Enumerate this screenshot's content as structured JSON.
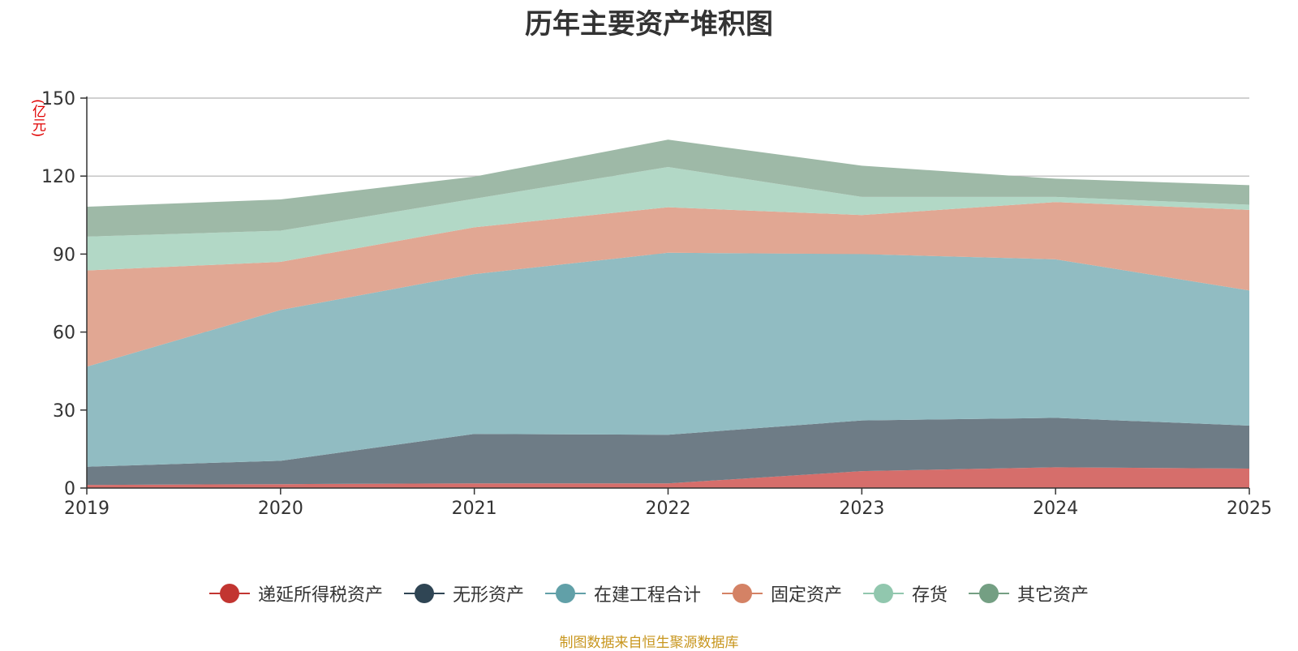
{
  "chart_data": {
    "type": "area",
    "stacked": true,
    "title": "历年主要资产堆积图",
    "unit": "(亿元)",
    "xlabel": "",
    "ylabel": "(亿元)",
    "ylim": [
      0,
      150
    ],
    "yticks": [
      0,
      30,
      60,
      90,
      120,
      150
    ],
    "categories": [
      "2019",
      "2020",
      "2021",
      "2022",
      "2023",
      "2024",
      "2025"
    ],
    "grid": true,
    "legend_position": "bottom",
    "series": [
      {
        "name": "递延所得税资产",
        "color": "#c23531",
        "fill": "#d66e6b",
        "values": [
          1.2,
          1.5,
          1.8,
          1.8,
          6.5,
          8.0,
          7.5
        ]
      },
      {
        "name": "无形资产",
        "color": "#2f4554",
        "fill": "#6e7c86",
        "values": [
          7.0,
          9.0,
          19.0,
          18.7,
          19.5,
          19.0,
          16.5
        ]
      },
      {
        "name": "在建工程合计",
        "color": "#61a0a8",
        "fill": "#91bcc2",
        "values": [
          38.5,
          58.0,
          61.5,
          70.0,
          64.0,
          61.0,
          52.0
        ]
      },
      {
        "name": "固定资产",
        "color": "#d48265",
        "fill": "#e1a793",
        "values": [
          37.0,
          18.5,
          18.0,
          17.5,
          15.0,
          22.0,
          31.0
        ]
      },
      {
        "name": "存货",
        "color": "#91c7ae",
        "fill": "#b2d8c6",
        "values": [
          13.0,
          12.0,
          11.0,
          15.5,
          7.0,
          2.0,
          2.0
        ]
      },
      {
        "name": "其它资产",
        "color": "#749f83",
        "fill": "#9eb9a7",
        "values": [
          11.5,
          12.0,
          8.5,
          10.5,
          12.0,
          7.0,
          7.5
        ]
      }
    ]
  },
  "source_note": "制图数据来自恒生聚源数据库"
}
